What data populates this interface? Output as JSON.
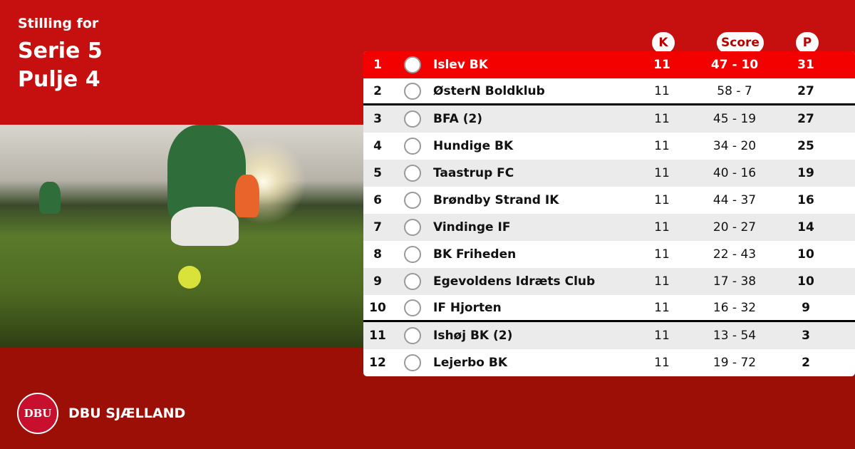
{
  "title": {
    "line1": "Stilling for",
    "line2": "Serie 5",
    "line3": "Pulje 4"
  },
  "headers": {
    "k": "K",
    "score": "Score",
    "p": "P"
  },
  "rows": [
    {
      "pos": "1",
      "team": "Islev BK",
      "k": "11",
      "score": "47 - 10",
      "p": "31"
    },
    {
      "pos": "2",
      "team": "ØsterN Boldklub",
      "k": "11",
      "score": "58 - 7",
      "p": "27"
    },
    {
      "pos": "3",
      "team": "BFA (2)",
      "k": "11",
      "score": "45 - 19",
      "p": "27"
    },
    {
      "pos": "4",
      "team": "Hundige BK",
      "k": "11",
      "score": "34 - 20",
      "p": "25"
    },
    {
      "pos": "5",
      "team": "Taastrup FC",
      "k": "11",
      "score": "40 - 16",
      "p": "19"
    },
    {
      "pos": "6",
      "team": "Brøndby Strand IK",
      "k": "11",
      "score": "44 - 37",
      "p": "16"
    },
    {
      "pos": "7",
      "team": "Vindinge IF",
      "k": "11",
      "score": "20 - 27",
      "p": "14"
    },
    {
      "pos": "8",
      "team": "BK Friheden",
      "k": "11",
      "score": "22 - 43",
      "p": "10"
    },
    {
      "pos": "9",
      "team": "Egevoldens Idræts Club",
      "k": "11",
      "score": "17 - 38",
      "p": "10"
    },
    {
      "pos": "10",
      "team": "IF Hjorten",
      "k": "11",
      "score": "16 - 32",
      "p": "9"
    },
    {
      "pos": "11",
      "team": "Ishøj BK (2)",
      "k": "11",
      "score": "13 - 54",
      "p": "3"
    },
    {
      "pos": "12",
      "team": "Lejerbo BK",
      "k": "11",
      "score": "19 - 72",
      "p": "2"
    }
  ],
  "footer": {
    "brand": "DBU SJÆLLAND",
    "seal_text": "DBU"
  },
  "colors": {
    "top_bg": "#c60f0f",
    "bottom_bg": "#9b0f07",
    "leader_row": "#f30000"
  }
}
